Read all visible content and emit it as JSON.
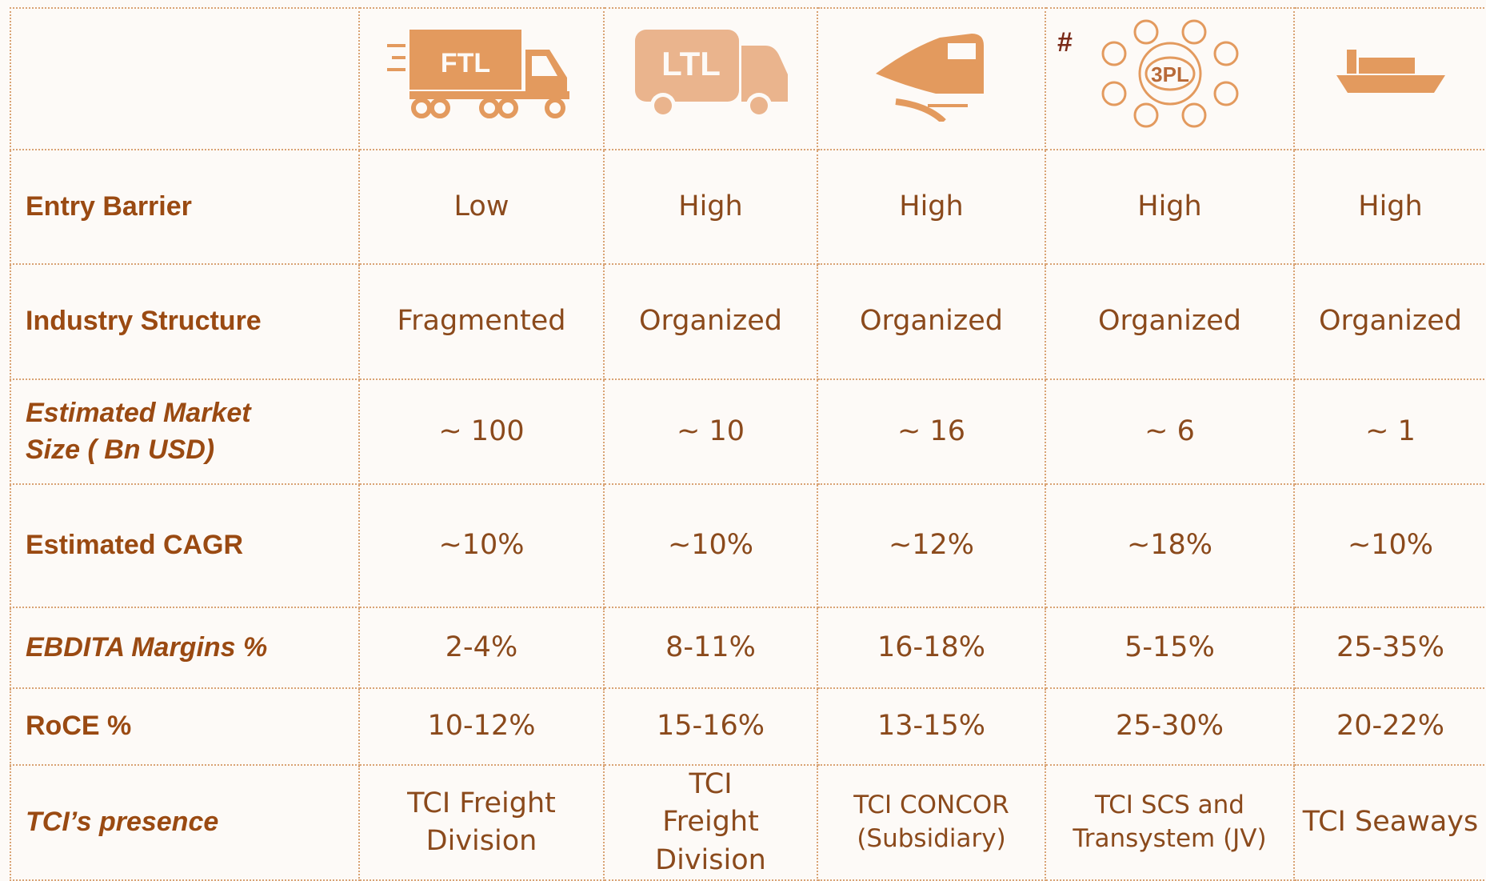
{
  "header": {
    "icon_labels": [
      "FTL",
      "LTL",
      "3PL"
    ],
    "note_mark": "#"
  },
  "table": {
    "rows": [
      [
        "Entry Barrier",
        "Low",
        "High",
        "High",
        "High",
        "High"
      ],
      [
        "Industry Structure",
        "Fragmented",
        "Organized",
        "Organized",
        "Organized",
        "Organized"
      ],
      [
        "Estimated Market Size ( Bn USD)",
        "~ 100",
        "~ 10",
        "~ 16",
        "~ 6",
        "~ 1"
      ],
      [
        "Estimated CAGR",
        "~10%",
        "~10%",
        "~12%",
        "~18%",
        "~10%"
      ],
      [
        "EBDITA Margins %",
        "2-4%",
        "8-11%",
        "16-18%",
        "5-15%",
        "25-35%"
      ],
      [
        "RoCE %",
        "10-12%",
        "15-16%",
        "13-15%",
        "25-30%",
        "20-22%"
      ],
      [
        "TCI’s presence",
        "TCI Freight Division",
        "TCI Freight Division",
        "TCI CONCOR (Subsidiary)",
        "TCI SCS and Transystem (JV)",
        "TCI Seaways"
      ]
    ]
  }
}
